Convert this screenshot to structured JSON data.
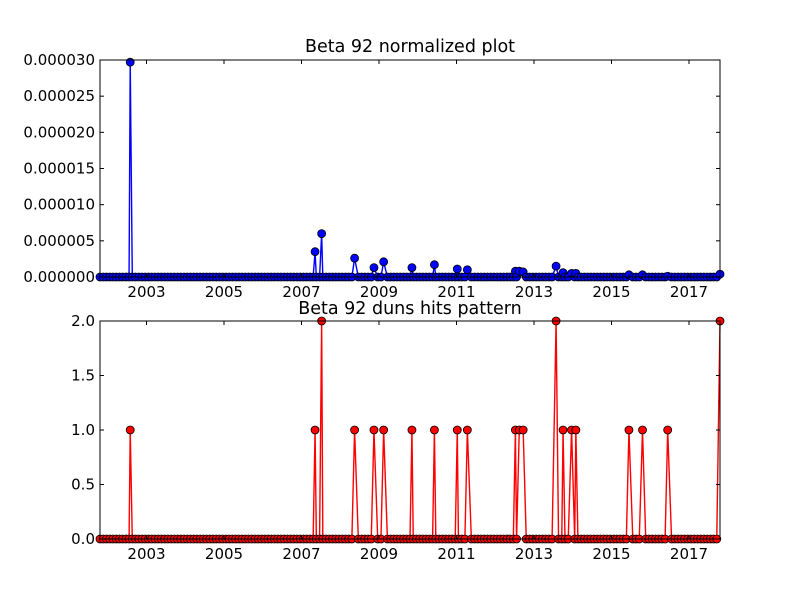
{
  "chart_data": [
    {
      "type": "line",
      "title": "Beta 92 normalized plot",
      "xlabel": "",
      "ylabel": "",
      "xlim": [
        2001.8,
        2017.8
      ],
      "ylim": [
        0,
        3e-05
      ],
      "x_ticks": [
        "2003",
        "2005",
        "2007",
        "2009",
        "2011",
        "2013",
        "2015",
        "2017"
      ],
      "y_ticks": [
        "0.000000",
        "0.000005",
        "0.000010",
        "0.000015",
        "0.000020",
        "0.000025",
        "0.000030"
      ],
      "color": "#0000ff",
      "baseline_x": [
        2001.8,
        2017.8
      ],
      "points": [
        [
          2002.58,
          2.97e-05
        ],
        [
          2007.35,
          3.5e-06
        ],
        [
          2007.52,
          6e-06
        ],
        [
          2008.37,
          2.6e-06
        ],
        [
          2008.87,
          1.3e-06
        ],
        [
          2009.12,
          2.1e-06
        ],
        [
          2009.85,
          1.3e-06
        ],
        [
          2010.43,
          1.7e-06
        ],
        [
          2011.02,
          1.1e-06
        ],
        [
          2011.28,
          1e-06
        ],
        [
          2012.52,
          8e-07
        ],
        [
          2012.62,
          8e-07
        ],
        [
          2012.72,
          7e-07
        ],
        [
          2013.57,
          1.5e-06
        ],
        [
          2013.75,
          6e-07
        ],
        [
          2013.97,
          5e-07
        ],
        [
          2014.08,
          5e-07
        ],
        [
          2015.45,
          3e-07
        ],
        [
          2015.8,
          3e-07
        ],
        [
          2016.45,
          1e-07
        ],
        [
          2017.8,
          4e-07
        ]
      ]
    },
    {
      "type": "line",
      "title": "Beta 92 duns hits pattern",
      "xlabel": "",
      "ylabel": "",
      "xlim": [
        2001.8,
        2017.8
      ],
      "ylim": [
        0,
        2
      ],
      "x_ticks": [
        "2003",
        "2005",
        "2007",
        "2009",
        "2011",
        "2013",
        "2015",
        "2017"
      ],
      "y_ticks": [
        "0.0",
        "0.5",
        "1.0",
        "1.5",
        "2.0"
      ],
      "color": "#ff0000",
      "baseline_x": [
        2001.8,
        2017.8
      ],
      "points": [
        [
          2002.58,
          1
        ],
        [
          2007.35,
          1
        ],
        [
          2007.52,
          2
        ],
        [
          2008.37,
          1
        ],
        [
          2008.87,
          1
        ],
        [
          2009.12,
          1
        ],
        [
          2009.85,
          1
        ],
        [
          2010.43,
          1
        ],
        [
          2011.02,
          1
        ],
        [
          2011.28,
          1
        ],
        [
          2012.52,
          1
        ],
        [
          2012.62,
          1
        ],
        [
          2012.72,
          1
        ],
        [
          2013.57,
          2
        ],
        [
          2013.75,
          1
        ],
        [
          2013.97,
          1
        ],
        [
          2014.08,
          1
        ],
        [
          2015.45,
          1
        ],
        [
          2015.8,
          1
        ],
        [
          2016.45,
          1
        ],
        [
          2017.8,
          2
        ]
      ]
    }
  ]
}
